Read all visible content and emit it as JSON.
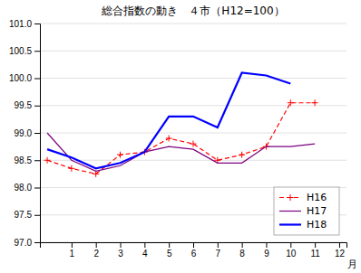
{
  "chart_data": {
    "type": "line",
    "title": "総合指数の動き　４市（H12=100）",
    "xlabel": "月",
    "x": [
      0,
      1,
      2,
      3,
      4,
      5,
      6,
      7,
      8,
      9,
      10,
      11
    ],
    "xlim": [
      -0.3,
      12.3
    ],
    "xticks": [
      1,
      2,
      3,
      4,
      5,
      6,
      7,
      8,
      9,
      10,
      11,
      12
    ],
    "ylim": [
      97.0,
      101.0
    ],
    "yticks": [
      {
        "value": 97.0,
        "label": "97.0"
      },
      {
        "value": 97.5,
        "label": "97.5"
      },
      {
        "value": 98.0,
        "label": "98.0"
      },
      {
        "value": 98.5,
        "label": "98.5"
      },
      {
        "value": 99.0,
        "label": "99.0"
      },
      {
        "value": 99.5,
        "label": "99.5"
      },
      {
        "value": 100.0,
        "label": "100.0"
      },
      {
        "value": 100.5,
        "label": "100.5"
      },
      {
        "value": 101.0,
        "label": "101.0"
      }
    ],
    "grid": true,
    "legend": "lower right",
    "series": [
      {
        "name": "H16",
        "color": "#ff0000",
        "line_style": "dashed",
        "marker": "plus",
        "values": [
          98.5,
          98.35,
          98.25,
          98.6,
          98.65,
          98.9,
          98.8,
          98.5,
          98.6,
          98.75,
          99.55,
          99.55
        ]
      },
      {
        "name": "H17",
        "color": "#7b0080",
        "line_style": "solid",
        "values": [
          99.0,
          98.5,
          98.3,
          98.4,
          98.65,
          98.75,
          98.7,
          98.45,
          98.45,
          98.75,
          98.75,
          98.8
        ]
      },
      {
        "name": "H18",
        "color": "#0000ff",
        "line_style": "solid",
        "values": [
          98.7,
          98.55,
          98.35,
          98.45,
          98.65,
          99.3,
          99.3,
          99.1,
          100.1,
          100.05,
          99.9,
          null
        ]
      }
    ]
  }
}
